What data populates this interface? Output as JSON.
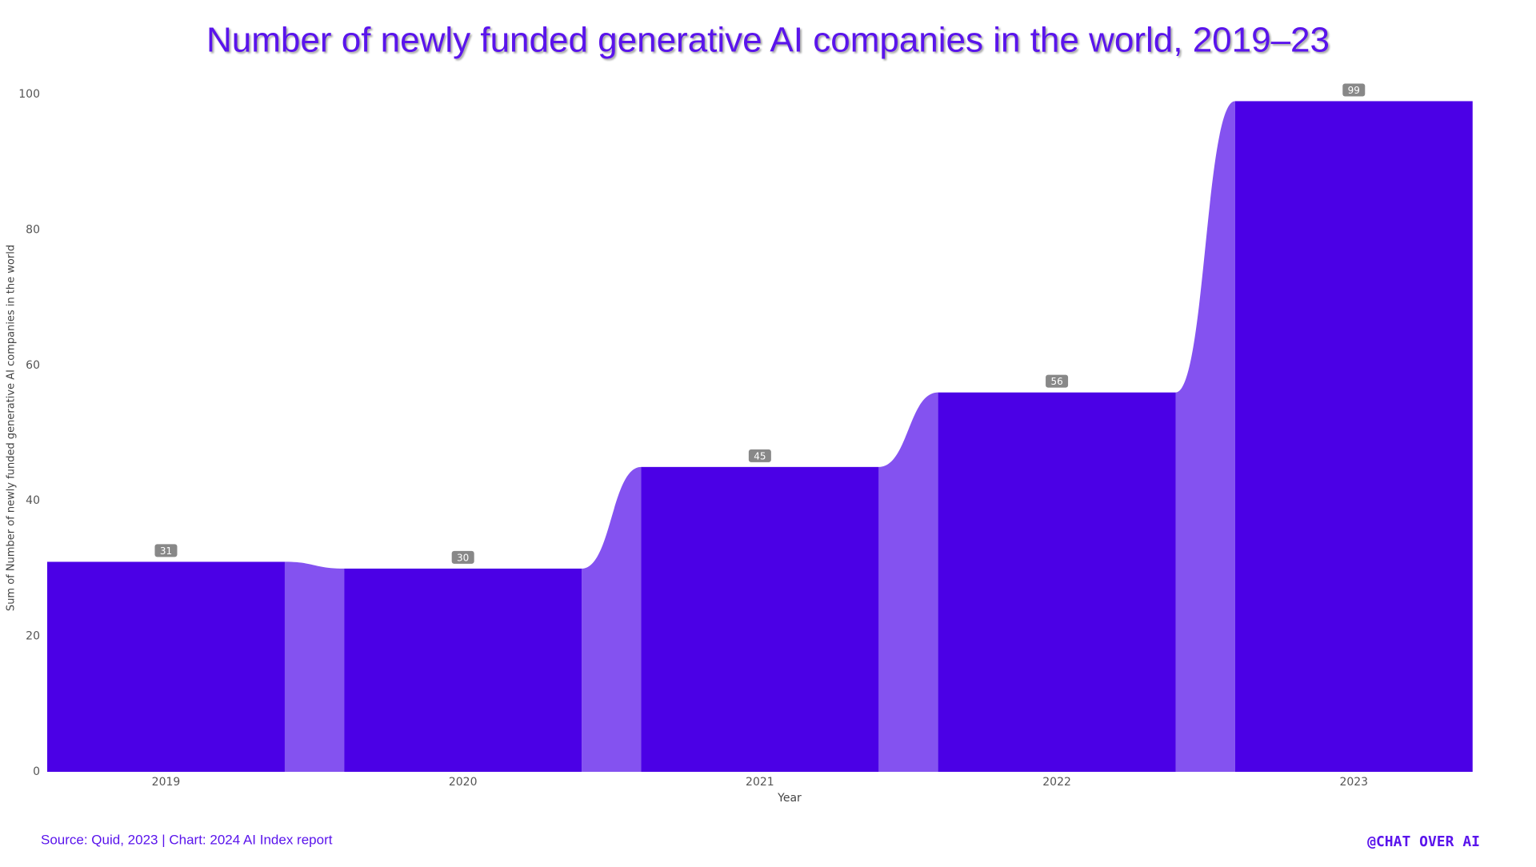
{
  "chart_data": {
    "type": "bar",
    "title": "Number of newly funded generative AI companies in the world, 2019–23",
    "categories": [
      "2019",
      "2020",
      "2021",
      "2022",
      "2023"
    ],
    "values": [
      31,
      30,
      45,
      56,
      99
    ],
    "color": "#4b00e6",
    "connector_color": "#8452f0",
    "ylim": [
      0,
      100
    ],
    "yticks": [
      0,
      20,
      40,
      60,
      80,
      100
    ],
    "grid": false,
    "x_label": "Year",
    "y_label": "Sum of Number of newly funded generative AI companies in the world",
    "source": "Source: Quid, 2023 | Chart: 2024 AI Index report",
    "watermark": "@CHAT OVER AI"
  }
}
